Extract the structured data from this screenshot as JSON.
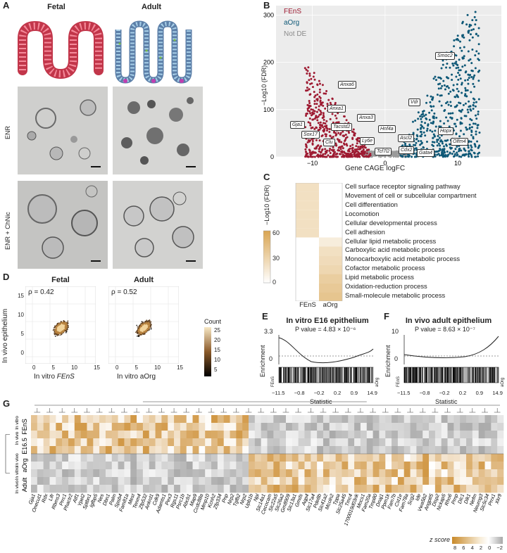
{
  "panels": {
    "A": "A",
    "B": "B",
    "C": "C",
    "D": "D",
    "E": "E",
    "F": "F",
    "G": "G"
  },
  "panelA": {
    "col_fetal": "Fetal",
    "col_adult": "Adult",
    "row_enr": "ENR",
    "row_enr_chnic": "ENR + ChNic"
  },
  "panelB": {
    "legend": {
      "fens": "FEnS",
      "aorg": "aOrg",
      "notde": "Not DE"
    },
    "colors": {
      "fens": "#9e1b32",
      "aorg": "#0e5877",
      "notde": "#9a9a9a"
    },
    "xlabel": "Gene CAGE logFC",
    "ylabel": "−Log10 (FDR)",
    "xticks": [
      "−10",
      "0",
      "10"
    ],
    "yticks": [
      "0",
      "100",
      "200",
      "300"
    ],
    "genes_fens": [
      "Anxa6",
      "Anxa1",
      "Gja1",
      "Tacstd2",
      "Anxa3",
      "Sox17",
      "Clu",
      "Ly6e",
      "Tcf7l2"
    ],
    "genes_aorg": [
      "Smoc2",
      "Vdr",
      "Hnf4a",
      "Hopx",
      "Ascl2",
      "Cdx2",
      "Olfm4",
      "Gata4"
    ]
  },
  "panelC": {
    "ylabel": "−Log10 (FDR)",
    "colorbar_ticks": [
      "60",
      "30",
      "0"
    ],
    "columns": [
      "FEnS",
      "aOrg"
    ],
    "processes": [
      "Cell surface receptor signaling pathway",
      "Movement of cell or subcellular compartment",
      "Cell differentiation",
      "Locomotion",
      "Cellular developmental process",
      "Cell adhesion",
      "Cellular lipid metabolic process",
      "Carboxylic acid metabolic process",
      "Monocarboxylic acid metabolic process",
      "Cofactor metabolic process",
      "Lipid metabolic process",
      "Oxidation-reduction process",
      "Small-molecule metabolic process"
    ]
  },
  "panelD": {
    "fetal_title": "Fetal",
    "adult_title": "Adult",
    "fetal_rho": "ρ = 0.42",
    "adult_rho": "ρ = 0.52",
    "ylabel": "In vivo epithelium",
    "xlabel_fetal_prefix": "In vitro ",
    "xlabel_fetal_italic": "FEnS",
    "xlabel_adult": "In vitro aOrg",
    "xticks": [
      "0",
      "5",
      "10",
      "15"
    ],
    "yticks": [
      "0",
      "5",
      "10",
      "15"
    ],
    "count_label": "Count",
    "count_ticks": [
      "25",
      "20",
      "15",
      "10",
      "5"
    ]
  },
  "panelE": {
    "title": "In vitro E16 epithelium",
    "pvalue": "P value = 4.83 × 10⁻⁶",
    "ylabel": "Enrichment",
    "yticks": [
      "3.3",
      "0"
    ],
    "xlabel": "Statistic",
    "xticks": [
      "−11.5",
      "−0.8",
      "−0.2",
      "0.2",
      "0.9",
      "14.9"
    ],
    "left_end": "FEnS",
    "right_end": "aOrg"
  },
  "panelF": {
    "title": "In vivo adult epithelium",
    "pvalue": "P value = 8.63 × 10⁻⁷",
    "ylabel": "Enrichment",
    "yticks": [
      "10",
      "0"
    ],
    "xlabel": "Statistic",
    "xticks": [
      "−11.5",
      "−0.8",
      "−0.2",
      "0.2",
      "0.9",
      "14.9"
    ],
    "left_end": "FEnS",
    "right_end": "aOrg"
  },
  "panelG": {
    "groups": [
      "In vitro",
      "In vivo",
      "In vivo",
      "In vitro",
      "In vivo"
    ],
    "rows": [
      "FEnS",
      "E16.5",
      "aOrg",
      "Adult"
    ],
    "genes": [
      "Gja1",
      "Onecut1",
      "Rdx",
      "Lifr",
      "Rbms3",
      "Prrc1",
      "Phactr2",
      "Atf1",
      "Ypel2",
      "Sptbn1",
      "Igfbp5",
      "Nes",
      "Dbn1",
      "Palm",
      "Spsb4",
      "Fam81a",
      "Mest",
      "Tenm4",
      "Zfp532",
      "Ankrd1",
      "Cdk9",
      "Adamts1",
      "Pex3",
      "Rgs11",
      "Psrc1b",
      "Abcb1",
      "Map9",
      "Ccdc88a",
      "Mmp10",
      "Kcnh2",
      "Zfp334",
      "Pnp",
      "Nrp2",
      "Tgfb2",
      "Nrp2",
      "Upb1b",
      "Npl",
      "Slc14a1",
      "Cecocam",
      "Slc22a5",
      "Slc26a2",
      "Gm8909",
      "Slc13a1",
      "Gmds",
      "Aqp4",
      "Slc17a4",
      "Pde8b",
      "Slc41a2",
      "Mcoln2",
      "Tppa",
      "Slc25a45",
      "Tmc4",
      "1700019d03rik",
      "Mocs1",
      "Fam20a",
      "Tmp80",
      "Dnaj1",
      "Ppm1k",
      "Fam7b",
      "Cst1e",
      "Fam78a",
      "Scg2",
      "Ide",
      "Vwa5b2",
      "Angptl5",
      "Disp2",
      "Nckap5",
      "Rho6",
      "Prnp",
      "Dlc1",
      "Dlk1",
      "Nefm",
      "Neurog3",
      "Slc5c34",
      "Prrx1",
      "Xkr9"
    ],
    "zscore_label": "z score",
    "zscore_ticks": [
      "8",
      "6",
      "4",
      "2",
      "0",
      "−2"
    ]
  }
}
